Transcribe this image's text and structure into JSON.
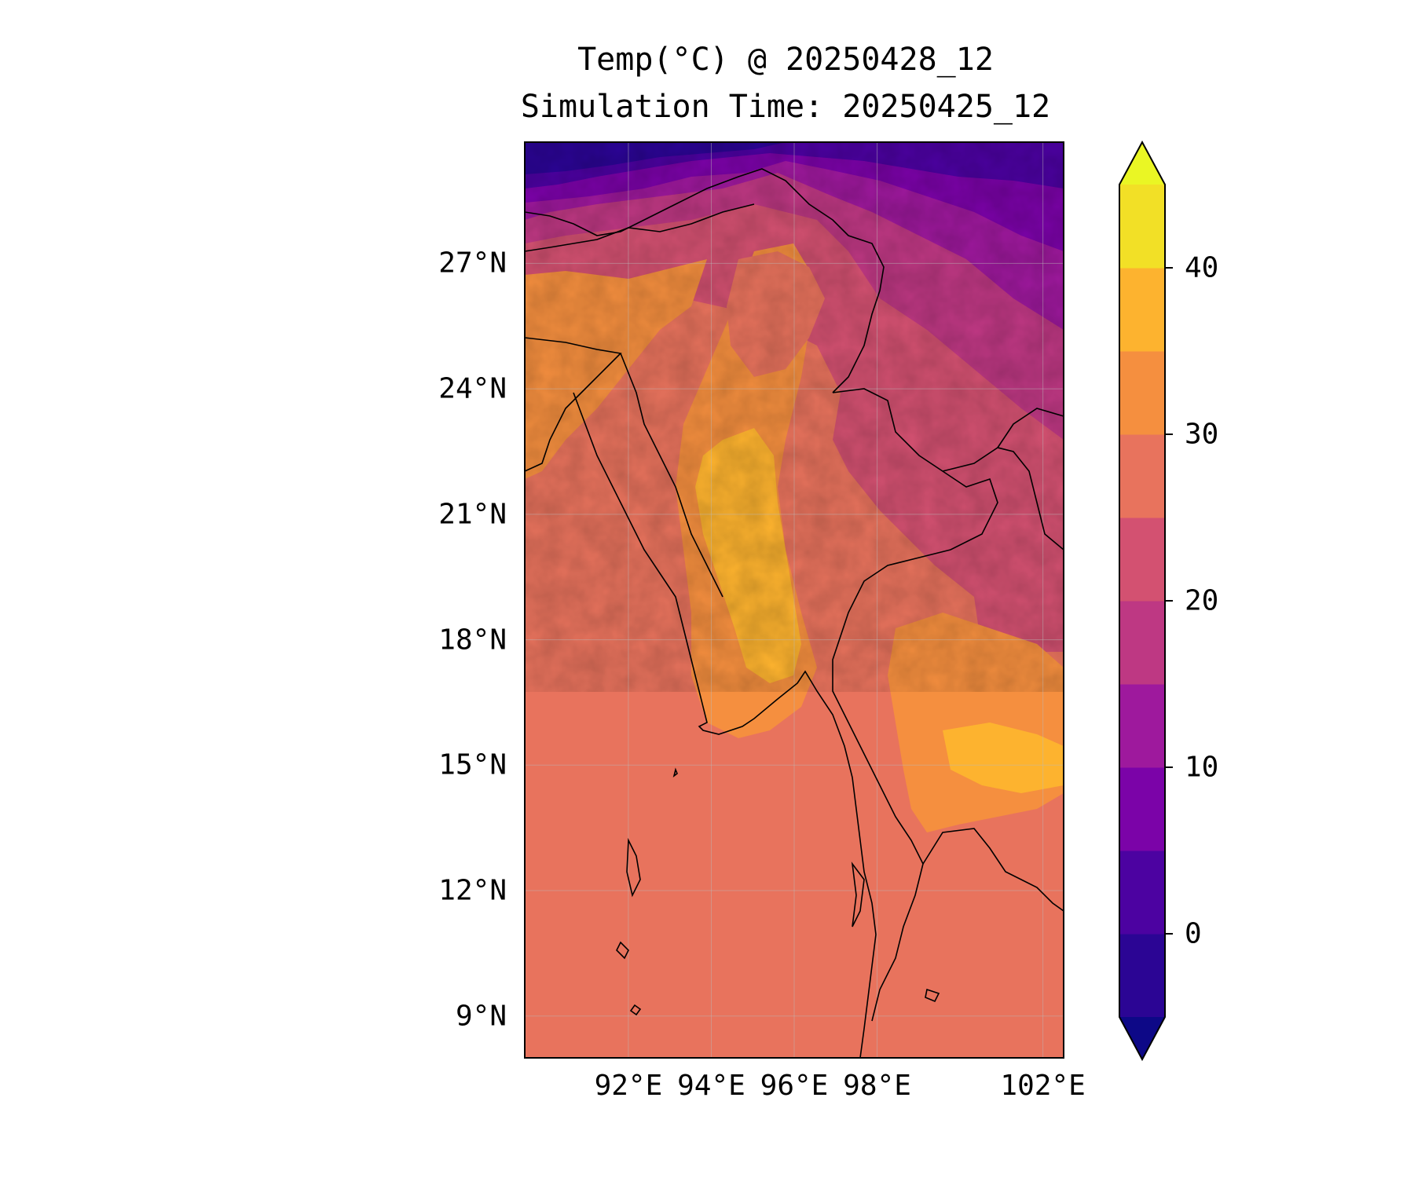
{
  "title": {
    "line1": "Temp(°C) @ 20250428_12",
    "line2": "Simulation Time: 20250425_12"
  },
  "map": {
    "lon_range": [
      89.5,
      102.5
    ],
    "lat_range": [
      8,
      29.9
    ],
    "lat_ticks": [
      {
        "value": 27,
        "label": "27°N"
      },
      {
        "value": 24,
        "label": "24°N"
      },
      {
        "value": 21,
        "label": "21°N"
      },
      {
        "value": 18,
        "label": "18°N"
      },
      {
        "value": 15,
        "label": "15°N"
      },
      {
        "value": 12,
        "label": "12°N"
      },
      {
        "value": 9,
        "label": "9°N"
      }
    ],
    "lon_ticks": [
      {
        "value": 92,
        "label": "92°E"
      },
      {
        "value": 94,
        "label": "94°E"
      },
      {
        "value": 96,
        "label": "96°E"
      },
      {
        "value": 98,
        "label": "98°E"
      },
      {
        "value": 102,
        "label": "102°E"
      }
    ],
    "gridlines": true
  },
  "colorbar": {
    "levels": [
      -5,
      0,
      5,
      10,
      15,
      20,
      25,
      30,
      35,
      40,
      45
    ],
    "extend": "both",
    "colors": {
      "under": "#0d0887",
      "bins": [
        "#2b0594",
        "#4c02a1",
        "#7b03a8",
        "#9e199d",
        "#be3883",
        "#d35171",
        "#e8735d",
        "#f58f3f",
        "#fdb32f",
        "#f2e026"
      ],
      "over": "#eaf624"
    },
    "tick_labels": [
      {
        "value": 0,
        "label": "0"
      },
      {
        "value": 10,
        "label": "10"
      },
      {
        "value": 20,
        "label": "20"
      },
      {
        "value": 30,
        "label": "30"
      },
      {
        "value": 40,
        "label": "40"
      }
    ],
    "orientation": "vertical",
    "colormap": "plasma"
  }
}
